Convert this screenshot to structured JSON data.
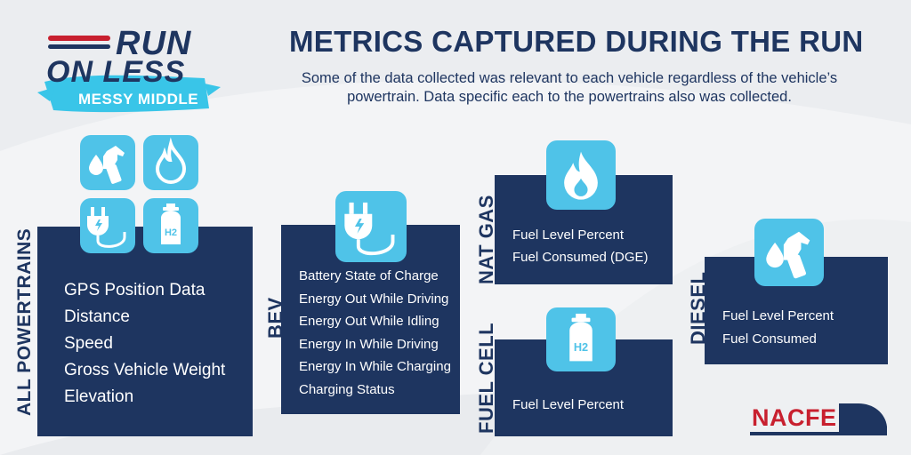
{
  "logo": {
    "line1": "RUN",
    "line2": "ON LESS",
    "line3": "MESSY MIDDLE"
  },
  "header": {
    "title": "METRICS CAPTURED DURING THE RUN",
    "subtitle": "Some of the data collected was relevant to each vehicle regardless of the vehicle’s powertrain. Data specific each to the powertrains also was collected."
  },
  "colors": {
    "navy": "#1e3560",
    "icon_tile": "#4fc3e8",
    "logo_red": "#c8202f",
    "background": "#f3f4f6"
  },
  "panels": {
    "all": {
      "label": "ALL POWERTRAINS",
      "icons": [
        "fuel-pump-icon",
        "flame-icon",
        "plug-icon",
        "hydrogen-tank-icon"
      ],
      "items": [
        "GPS Position Data",
        "Distance",
        "Speed",
        "Gross Vehicle Weight",
        "Elevation"
      ]
    },
    "bev": {
      "label": "BEV",
      "icon": "plug-icon",
      "items": [
        "Battery State of Charge",
        "Energy Out While Driving",
        "Energy Out While Idling",
        "Energy In While Driving",
        "Energy In While Charging",
        "Charging Status"
      ]
    },
    "natgas": {
      "label": "NAT GAS",
      "icon": "flame-icon",
      "items": [
        "Fuel Level Percent",
        "Fuel Consumed (DGE)"
      ]
    },
    "fuelcell": {
      "label": "FUEL CELL",
      "icon": "hydrogen-tank-icon",
      "items": [
        "Fuel Level Percent"
      ]
    },
    "diesel": {
      "label": "DIESEL",
      "icon": "fuel-pump-icon",
      "items": [
        "Fuel Level Percent",
        "Fuel Consumed"
      ]
    }
  },
  "footer": {
    "brand": "NACFE"
  }
}
